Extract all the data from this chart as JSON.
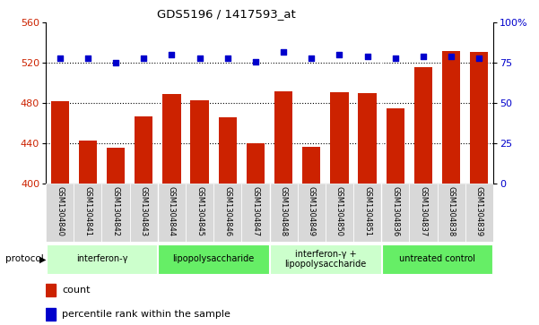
{
  "title": "GDS5196 / 1417593_at",
  "samples": [
    "GSM1304840",
    "GSM1304841",
    "GSM1304842",
    "GSM1304843",
    "GSM1304844",
    "GSM1304845",
    "GSM1304846",
    "GSM1304847",
    "GSM1304848",
    "GSM1304849",
    "GSM1304850",
    "GSM1304851",
    "GSM1304836",
    "GSM1304837",
    "GSM1304838",
    "GSM1304839"
  ],
  "counts": [
    482,
    443,
    436,
    467,
    489,
    483,
    466,
    440,
    492,
    437,
    491,
    490,
    475,
    516,
    532,
    531
  ],
  "percentile_ranks": [
    78,
    78,
    75,
    78,
    80,
    78,
    78,
    76,
    82,
    78,
    80,
    79,
    78,
    79,
    79,
    78
  ],
  "ylim_left": [
    400,
    560
  ],
  "ylim_right": [
    0,
    100
  ],
  "yticks_left": [
    400,
    440,
    480,
    520,
    560
  ],
  "yticks_right": [
    0,
    25,
    50,
    75,
    100
  ],
  "bar_color": "#CC2200",
  "dot_color": "#0000CC",
  "protocol_groups": [
    {
      "label": "interferon-γ",
      "start": 0,
      "end": 4,
      "color": "#ccffcc"
    },
    {
      "label": "lipopolysaccharide",
      "start": 4,
      "end": 8,
      "color": "#66ee66"
    },
    {
      "label": "interferon-γ +\nlipopolysaccharide",
      "start": 8,
      "end": 12,
      "color": "#ccffcc"
    },
    {
      "label": "untreated control",
      "start": 12,
      "end": 16,
      "color": "#66ee66"
    }
  ],
  "tick_label_color_left": "#CC2200",
  "tick_label_color_right": "#0000CC",
  "sample_bg_color": "#dddddd",
  "plot_bg_color": "#ffffff"
}
